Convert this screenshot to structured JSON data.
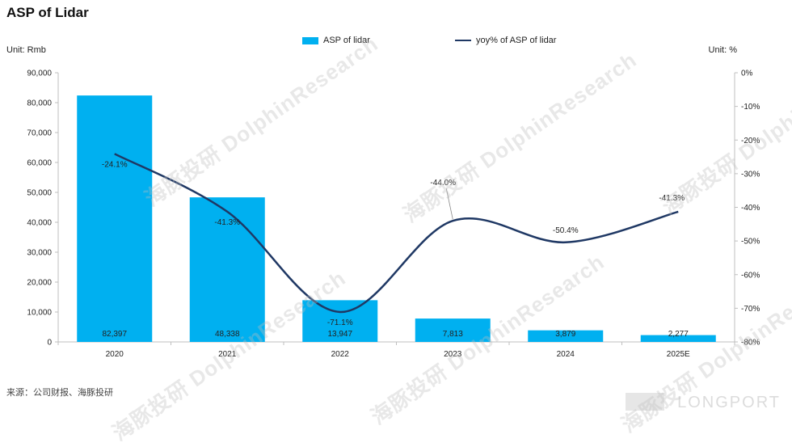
{
  "title": "ASP of Lidar",
  "unit_left": "Unit: Rmb",
  "unit_right": "Unit:  %",
  "source": "来源：公司财报、海豚投研",
  "brand": "LONGPORT",
  "watermark": "海豚投研 DolphinResearch",
  "colors": {
    "bar": "#00B0F0",
    "line": "#1F3864",
    "axis": "#BFBFBF"
  },
  "chart_data": {
    "type": "bar",
    "title": "ASP of Lidar",
    "categories": [
      "2020",
      "2021",
      "2022",
      "2023",
      "2024",
      "2025E"
    ],
    "series": [
      {
        "name": "ASP of lidar",
        "type": "bar",
        "axis": "left",
        "values": [
          82397,
          48338,
          13947,
          7813,
          3879,
          2277
        ],
        "labels": [
          "82,397",
          "48,338",
          "13,947",
          "7,813",
          "3,879",
          "2,277"
        ]
      },
      {
        "name": "yoy% of ASP of lidar",
        "type": "line",
        "axis": "right",
        "values": [
          -24.1,
          -41.3,
          -71.1,
          -44.0,
          -50.4,
          -41.3
        ],
        "labels": [
          "-24.1%",
          "-41.3%",
          "-71.1%",
          "-44.0%",
          "-50.4%",
          "-41.3%"
        ]
      }
    ],
    "y_left": {
      "min": 0,
      "max": 90000,
      "ticks": [
        "0",
        "10,000",
        "20,000",
        "30,000",
        "40,000",
        "50,000",
        "60,000",
        "70,000",
        "80,000",
        "90,000"
      ]
    },
    "y_right": {
      "min": -80,
      "max": 0,
      "ticks": [
        "0%",
        "-10%",
        "-20%",
        "-30%",
        "-40%",
        "-50%",
        "-60%",
        "-70%",
        "-80%"
      ]
    },
    "legend_position": "top-center",
    "grid": false
  }
}
